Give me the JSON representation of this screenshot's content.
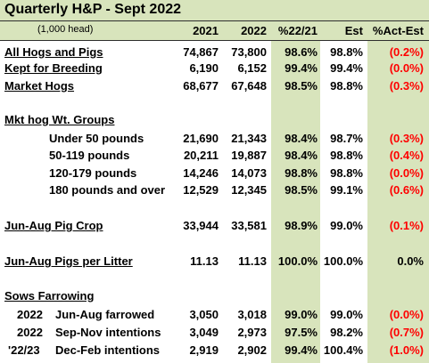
{
  "title": "Quarterly H&P - Sept 2022",
  "subtitle": "(1,000 head)",
  "headers": {
    "y2021": "2021",
    "y2022": "2022",
    "pct": "%22/21",
    "est": "Est",
    "actest": "%Act-Est"
  },
  "rows": [
    {
      "label": "All Hogs and Pigs",
      "v2021": "74,867",
      "v2022": "73,800",
      "pct": "98.6%",
      "est": "98.8%",
      "act": "(0.2%)"
    },
    {
      "label": "Kept for Breeding",
      "v2021": "6,190",
      "v2022": "6,152",
      "pct": "99.4%",
      "est": "99.4%",
      "act": "(0.0%)"
    },
    {
      "label": "Market Hogs",
      "v2021": "68,677",
      "v2022": "67,648",
      "pct": "98.5%",
      "est": "98.8%",
      "act": "(0.3%)"
    },
    {
      "label": "Mkt hog Wt. Groups"
    },
    {
      "label": "Under 50 pounds",
      "v2021": "21,690",
      "v2022": "21,343",
      "pct": "98.4%",
      "est": "98.7%",
      "act": "(0.3%)"
    },
    {
      "label": "50-119 pounds",
      "v2021": "20,211",
      "v2022": "19,887",
      "pct": "98.4%",
      "est": "98.8%",
      "act": "(0.4%)"
    },
    {
      "label": "120-179 pounds",
      "v2021": "14,246",
      "v2022": "14,073",
      "pct": "98.8%",
      "est": "98.8%",
      "act": "(0.0%)"
    },
    {
      "label": "180 pounds and over",
      "v2021": "12,529",
      "v2022": "12,345",
      "pct": "98.5%",
      "est": "99.1%",
      "act": "(0.6%)"
    },
    {
      "label": "Jun-Aug Pig Crop",
      "v2021": "33,944",
      "v2022": "33,581",
      "pct": "98.9%",
      "est": "99.0%",
      "act": "(0.1%)"
    },
    {
      "label": "Jun-Aug Pigs per Litter",
      "v2021": "11.13",
      "v2022": "11.13",
      "pct": "100.0%",
      "est": "100.0%",
      "act": "0.0%"
    },
    {
      "label": "Sows Farrowing"
    },
    {
      "year": "2022",
      "label": "Jun-Aug farrowed",
      "v2021": "3,050",
      "v2022": "3,018",
      "pct": "99.0%",
      "est": "99.0%",
      "act": "(0.0%)"
    },
    {
      "year": "2022",
      "label": "Sep-Nov intentions",
      "v2021": "3,049",
      "v2022": "2,973",
      "pct": "97.5%",
      "est": "98.2%",
      "act": "(0.7%)"
    },
    {
      "year": "'22/23",
      "label": "Dec-Feb intentions",
      "v2021": "2,919",
      "v2022": "2,902",
      "pct": "99.4%",
      "est": "100.4%",
      "act": "(1.0%)"
    }
  ],
  "colors": {
    "band": "#d8e4bc",
    "negative": "#ff0000"
  }
}
